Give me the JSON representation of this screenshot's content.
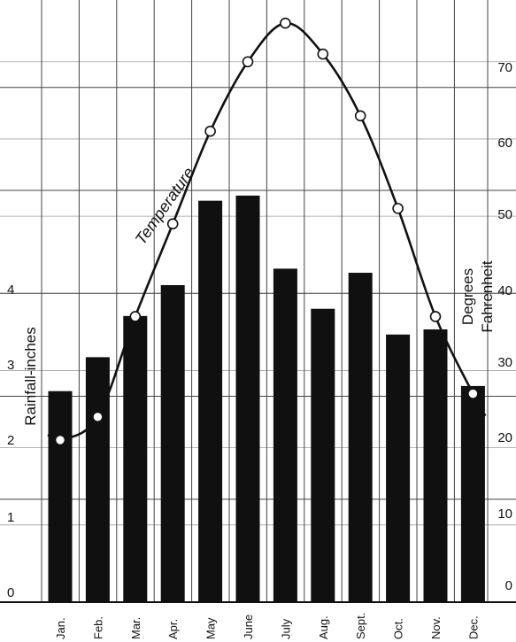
{
  "chart_data": {
    "type": "bar",
    "categories": [
      "Jan.",
      "Feb.",
      "Mar.",
      "Apr.",
      "May",
      "June",
      "July",
      "Aug.",
      "Sept.",
      "Oct.",
      "Nov.",
      "Dec."
    ],
    "series": [
      {
        "name": "",
        "axis": "left",
        "type": "bar",
        "values": [
          2.05,
          2.38,
          2.78,
          3.08,
          3.9,
          3.95,
          3.24,
          2.85,
          3.2,
          2.6,
          2.65,
          2.1
        ]
      },
      {
        "name": "Temperature",
        "axis": "right",
        "type": "line",
        "values": [
          21,
          24,
          37,
          49,
          61,
          70,
          75,
          71,
          63,
          51,
          37,
          27
        ]
      }
    ],
    "left_axis": {
      "label": "Rainfall-inches",
      "ticks": [
        "0",
        "1",
        "2",
        "3",
        "4"
      ],
      "ylim": [
        0,
        5.85
      ]
    },
    "right_axis": {
      "label": [
        "Degrees",
        "Fahrenheit"
      ],
      "ticks": [
        "0",
        "10",
        "20",
        "30",
        "40",
        "50",
        "60",
        "70"
      ],
      "ylim": [
        0,
        78
      ]
    },
    "grid": true,
    "colors": {
      "bars": "#101010",
      "line": "#111111",
      "grid": "#444444"
    }
  }
}
